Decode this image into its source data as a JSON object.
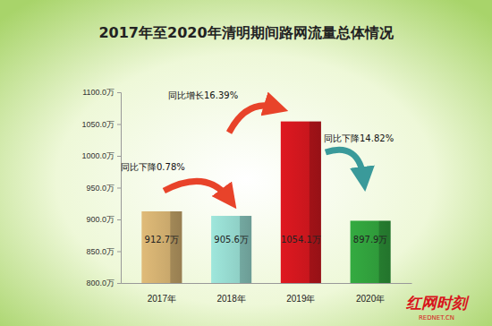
{
  "chart_data": {
    "type": "bar",
    "title": "2017年至2020年清明期间路网流量总体情况",
    "categories": [
      "2017年",
      "2018年",
      "2019年",
      "2020年"
    ],
    "values": [
      912.7,
      905.6,
      1054.1,
      897.9
    ],
    "value_labels": [
      "912.7万",
      "905.6万",
      "1054.1万",
      "897.9万"
    ],
    "data_labels": true,
    "colors": [
      "#c9a86c",
      "#8fd0c6",
      "#c8161d",
      "#2f9a3a"
    ],
    "ylim": [
      800,
      1100
    ],
    "yticks": [
      {
        "value": 800,
        "label": "800.0万"
      },
      {
        "value": 850,
        "label": "850.0万"
      },
      {
        "value": 900,
        "label": "900.0万"
      },
      {
        "value": 950,
        "label": "950.0万"
      },
      {
        "value": 1000,
        "label": "1000.0万"
      },
      {
        "value": 1050,
        "label": "1050.0万"
      },
      {
        "value": 1100,
        "label": "1100.0万"
      }
    ],
    "grid": false,
    "annotations": [
      "同比下降0.78%",
      "同比增长16.39%",
      "同比下降14.82%"
    ],
    "watermark": [
      "红网时刻",
      "REDNET.CN"
    ]
  }
}
